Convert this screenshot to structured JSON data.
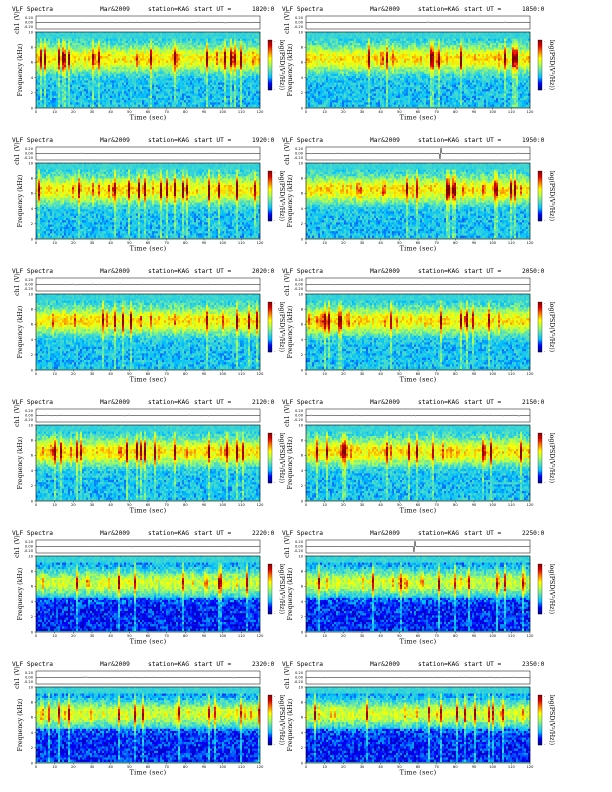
{
  "figure": {
    "left_header": "VLF Spectra",
    "date": "Mar&2009",
    "station": "station=KAG",
    "start_prefix": "start  UT  =",
    "channel_label": "ch1 (V)",
    "ch1_ticks": [
      "0.20",
      "0.00",
      "-0.20"
    ],
    "freq_label": "Frequency  (kHz)",
    "freq_ticks": [
      "0",
      "2",
      "4",
      "6",
      "8",
      "10"
    ],
    "time_label": "Time  (sec)",
    "time_ticks": [
      "0",
      "10",
      "20",
      "30",
      "40",
      "50",
      "60",
      "70",
      "80",
      "90",
      "100",
      "110",
      "120"
    ],
    "colorbar_label": "log(PSD(V²/Hz))",
    "colorbar_ticks": [
      "-",
      "-"
    ]
  },
  "panels": [
    {
      "start_ut": "1820:0",
      "spike": -1
    },
    {
      "start_ut": "1850:0",
      "spike": -1
    },
    {
      "start_ut": "1920:0",
      "spike": -1
    },
    {
      "start_ut": "1950:0",
      "spike": 72
    },
    {
      "start_ut": "2020:0",
      "spike": -1
    },
    {
      "start_ut": "2050:0",
      "spike": -1
    },
    {
      "start_ut": "2120:0",
      "spike": -1
    },
    {
      "start_ut": "2150:0",
      "spike": -1
    },
    {
      "start_ut": "2220:0",
      "spike": -1
    },
    {
      "start_ut": "2250:0",
      "spike": 58
    },
    {
      "start_ut": "2320:0",
      "spike": -1
    },
    {
      "start_ut": "2350:0",
      "spike": -1
    }
  ],
  "chart_data": {
    "type": "heatmap",
    "title": "VLF Spectra",
    "xlabel": "Time  (sec)",
    "ylabel": "Frequency  (kHz)",
    "xlim": [
      0,
      120
    ],
    "ylim": [
      0,
      10
    ],
    "colorbar_label": "log(PSD(V²/Hz))",
    "colormap": [
      "#00007f",
      "#0000ff",
      "#00bfff",
      "#55e0c0",
      "#b0ff50",
      "#ffff00",
      "#ff8000",
      "#e00000",
      "#7f0000"
    ],
    "series": [
      {
        "name": "1820:0"
      },
      {
        "name": "1850:0"
      },
      {
        "name": "1920:0"
      },
      {
        "name": "1950:0"
      },
      {
        "name": "2020:0"
      },
      {
        "name": "2050:0"
      },
      {
        "name": "2120:0"
      },
      {
        "name": "2150:0"
      },
      {
        "name": "2220:0"
      },
      {
        "name": "2250:0"
      },
      {
        "name": "2320:0"
      },
      {
        "name": "2350:0"
      }
    ]
  }
}
